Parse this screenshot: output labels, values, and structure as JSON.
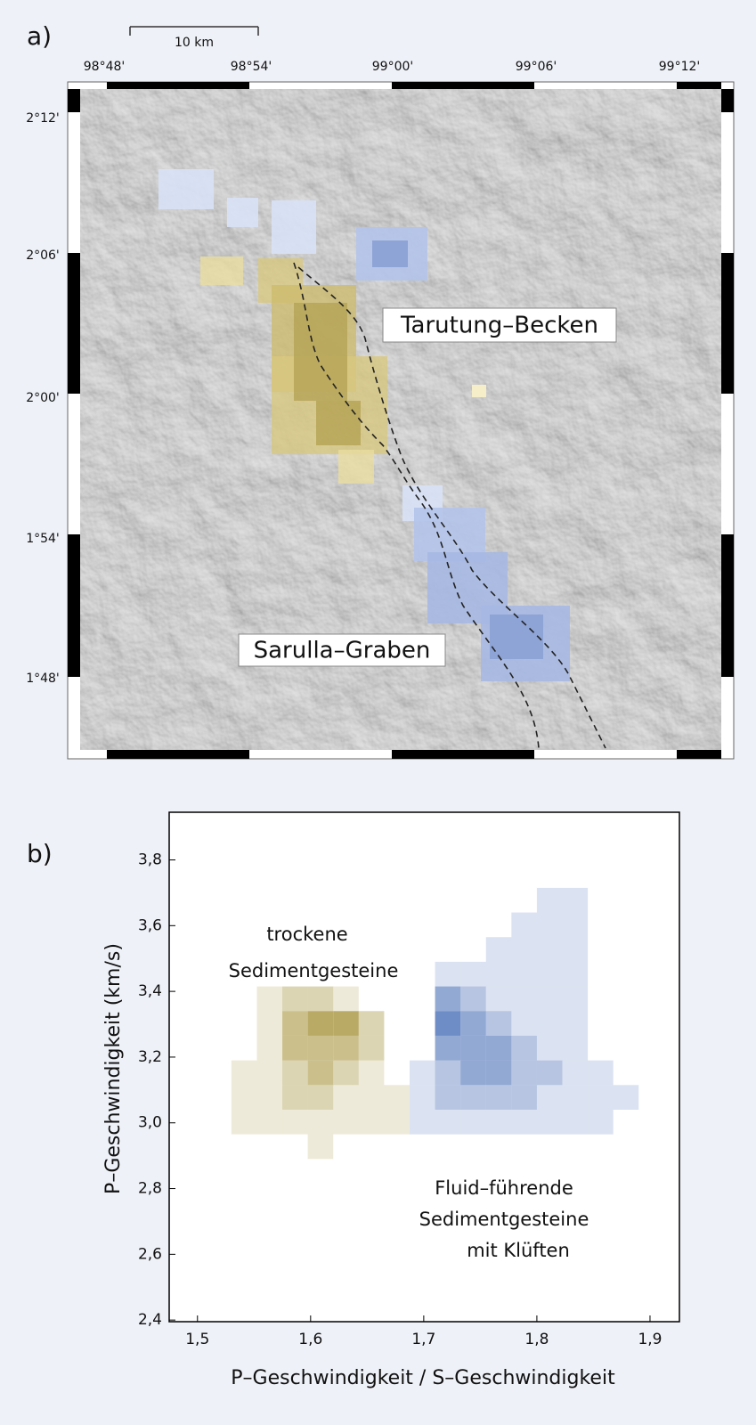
{
  "map": {
    "label": "a)",
    "scale": "10 km",
    "lon_labels": [
      "98°48'",
      "98°54'",
      "99°00'",
      "99°06'",
      "99°12'"
    ],
    "lat_labels": [
      "2°12'",
      "2°06'",
      "2°00'",
      "1°54'",
      "1°48'"
    ],
    "regions": [
      "Tarutung–Becken",
      "Sarulla–Graben"
    ]
  },
  "chart_data": {
    "type": "heatmap",
    "label": "b)",
    "xlabel": "P–Geschwindigkeit / S–Geschwindigkeit",
    "ylabel": "P–Geschwindigkeit (km/s)",
    "xlim": [
      1.475,
      1.926
    ],
    "ylim": [
      2.395,
      3.945
    ],
    "xticks": [
      {
        "value": 1.5,
        "label": "1,5"
      },
      {
        "value": 1.6,
        "label": "1,6"
      },
      {
        "value": 1.7,
        "label": "1,7"
      },
      {
        "value": 1.8,
        "label": "1,8"
      },
      {
        "value": 1.9,
        "label": "1,9"
      }
    ],
    "yticks": [
      {
        "value": 2.4,
        "label": "2,4"
      },
      {
        "value": 2.6,
        "label": "2,6"
      },
      {
        "value": 2.8,
        "label": "2,8"
      },
      {
        "value": 3.0,
        "label": "3,0"
      },
      {
        "value": 3.2,
        "label": "3,2"
      },
      {
        "value": 3.4,
        "label": "3,4"
      },
      {
        "value": 3.6,
        "label": "3,6"
      },
      {
        "value": 3.8,
        "label": "3,8"
      }
    ],
    "xbins": [
      1.53,
      1.5525,
      1.575,
      1.5975,
      1.62,
      1.6425,
      1.665,
      1.6875,
      1.71,
      1.7325,
      1.755,
      1.7775,
      1.8,
      1.8225,
      1.845,
      1.8675,
      1.89
    ],
    "ybins": [
      2.89,
      2.965,
      3.04,
      3.115,
      3.19,
      3.265,
      3.34,
      3.415,
      3.49,
      3.565,
      3.64,
      3.715
    ],
    "series": [
      {
        "color": "#a89640",
        "z": [
          [
            null,
            null,
            null,
            1,
            null,
            null,
            null,
            null,
            null,
            null,
            null,
            null,
            null,
            null,
            null,
            null
          ],
          [
            1,
            1,
            1,
            1,
            1,
            1,
            1,
            null,
            null,
            null,
            null,
            null,
            null,
            null,
            null,
            null
          ],
          [
            1,
            1,
            2,
            2,
            1,
            1,
            1,
            null,
            null,
            null,
            null,
            null,
            null,
            null,
            null,
            null
          ],
          [
            1,
            1,
            2,
            3,
            2,
            1,
            null,
            null,
            null,
            null,
            null,
            null,
            null,
            null,
            null,
            null
          ],
          [
            null,
            1,
            3,
            3,
            3,
            2,
            null,
            null,
            null,
            null,
            null,
            null,
            null,
            null,
            null,
            null
          ],
          [
            null,
            1,
            3,
            4,
            4,
            2,
            null,
            null,
            null,
            null,
            null,
            null,
            null,
            null,
            null,
            null
          ],
          [
            null,
            1,
            2,
            2,
            1,
            null,
            null,
            null,
            null,
            null,
            null,
            null,
            null,
            null,
            null,
            null
          ],
          [
            null,
            null,
            null,
            null,
            null,
            null,
            null,
            null,
            null,
            null,
            null,
            null,
            null,
            null,
            null,
            null
          ],
          [
            null,
            null,
            null,
            null,
            null,
            null,
            null,
            null,
            null,
            null,
            null,
            null,
            null,
            null,
            null,
            null
          ],
          [
            null,
            null,
            null,
            null,
            null,
            null,
            null,
            null,
            null,
            null,
            null,
            null,
            null,
            null,
            null,
            null
          ],
          [
            null,
            null,
            null,
            null,
            null,
            null,
            null,
            null,
            null,
            null,
            null,
            null,
            null,
            null,
            null,
            null
          ]
        ]
      },
      {
        "color": "#4a6fb8",
        "z": [
          [
            null,
            null,
            null,
            null,
            null,
            null,
            null,
            null,
            null,
            null,
            null,
            null,
            null,
            null,
            null,
            null
          ],
          [
            null,
            null,
            null,
            null,
            null,
            null,
            null,
            1,
            1,
            1,
            1,
            1,
            1,
            1,
            1,
            null
          ],
          [
            null,
            null,
            null,
            null,
            null,
            null,
            null,
            1,
            2,
            2,
            2,
            2,
            1,
            1,
            1,
            1
          ],
          [
            null,
            null,
            null,
            null,
            null,
            null,
            null,
            1,
            2,
            3,
            3,
            2,
            2,
            1,
            1,
            null
          ],
          [
            null,
            null,
            null,
            null,
            null,
            null,
            null,
            null,
            3,
            3,
            3,
            2,
            1,
            1,
            null,
            null
          ],
          [
            null,
            null,
            null,
            null,
            null,
            null,
            null,
            null,
            4,
            3,
            2,
            1,
            1,
            1,
            null,
            null
          ],
          [
            null,
            null,
            null,
            null,
            null,
            null,
            null,
            null,
            3,
            2,
            1,
            1,
            1,
            1,
            null,
            null
          ],
          [
            null,
            null,
            null,
            null,
            null,
            null,
            null,
            null,
            1,
            1,
            1,
            1,
            1,
            1,
            null,
            null
          ],
          [
            null,
            null,
            null,
            null,
            null,
            null,
            null,
            null,
            null,
            null,
            1,
            1,
            1,
            1,
            null,
            null
          ],
          [
            null,
            null,
            null,
            null,
            null,
            null,
            null,
            null,
            null,
            null,
            null,
            1,
            1,
            1,
            null,
            null
          ],
          [
            null,
            null,
            null,
            null,
            null,
            null,
            null,
            null,
            null,
            null,
            null,
            null,
            1,
            1,
            null,
            null
          ]
        ]
      }
    ],
    "annotations": [
      "trockene",
      "Sedimentgesteine",
      "Fluid–führende",
      "Sedimentgesteine",
      "mit Klüften"
    ]
  }
}
